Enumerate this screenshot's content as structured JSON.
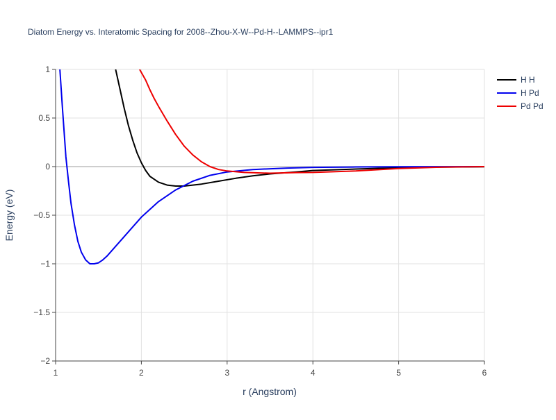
{
  "chart_data": {
    "type": "line",
    "title": "Diatom Energy vs. Interatomic Spacing for 2008--Zhou-X-W--Pd-H--LAMMPS--ipr1",
    "xlabel": "r (Angstrom)",
    "ylabel": "Energy (eV)",
    "xlim": [
      1,
      6
    ],
    "ylim": [
      -2,
      1
    ],
    "x_ticks": [
      1,
      2,
      3,
      4,
      5,
      6
    ],
    "y_ticks": [
      1,
      0.5,
      0,
      -0.5,
      -1,
      -1.5,
      -2
    ],
    "x_tick_labels": [
      "1",
      "2",
      "3",
      "4",
      "5",
      "6"
    ],
    "y_tick_labels": [
      "1",
      "0.5",
      "0",
      "−0.5",
      "−1",
      "−1.5",
      "−2"
    ],
    "grid": true,
    "legend_position": "top-right",
    "series": [
      {
        "name": "H H",
        "color": "#000000",
        "points": [
          [
            1.7,
            1.0
          ],
          [
            1.75,
            0.8
          ],
          [
            1.8,
            0.6
          ],
          [
            1.85,
            0.42
          ],
          [
            1.9,
            0.27
          ],
          [
            1.95,
            0.14
          ],
          [
            2.0,
            0.04
          ],
          [
            2.05,
            -0.04
          ],
          [
            2.1,
            -0.1
          ],
          [
            2.2,
            -0.16
          ],
          [
            2.3,
            -0.19
          ],
          [
            2.4,
            -0.2
          ],
          [
            2.5,
            -0.2
          ],
          [
            2.7,
            -0.18
          ],
          [
            2.9,
            -0.15
          ],
          [
            3.1,
            -0.12
          ],
          [
            3.3,
            -0.095
          ],
          [
            3.5,
            -0.075
          ],
          [
            3.8,
            -0.055
          ],
          [
            4.0,
            -0.04
          ],
          [
            4.5,
            -0.025
          ],
          [
            5.0,
            -0.012
          ],
          [
            5.5,
            -0.005
          ],
          [
            6.0,
            -0.002
          ]
        ]
      },
      {
        "name": "H Pd",
        "color": "#0000ee",
        "points": [
          [
            1.05,
            1.0
          ],
          [
            1.08,
            0.6
          ],
          [
            1.1,
            0.35
          ],
          [
            1.12,
            0.1
          ],
          [
            1.15,
            -0.15
          ],
          [
            1.18,
            -0.38
          ],
          [
            1.22,
            -0.6
          ],
          [
            1.26,
            -0.77
          ],
          [
            1.3,
            -0.88
          ],
          [
            1.35,
            -0.96
          ],
          [
            1.4,
            -1.0
          ],
          [
            1.45,
            -1.0
          ],
          [
            1.5,
            -0.99
          ],
          [
            1.55,
            -0.96
          ],
          [
            1.6,
            -0.92
          ],
          [
            1.7,
            -0.82
          ],
          [
            1.8,
            -0.72
          ],
          [
            1.9,
            -0.62
          ],
          [
            2.0,
            -0.52
          ],
          [
            2.2,
            -0.36
          ],
          [
            2.4,
            -0.24
          ],
          [
            2.6,
            -0.15
          ],
          [
            2.8,
            -0.09
          ],
          [
            3.0,
            -0.055
          ],
          [
            3.3,
            -0.03
          ],
          [
            3.7,
            -0.015
          ],
          [
            4.0,
            -0.008
          ],
          [
            4.5,
            -0.004
          ],
          [
            5.0,
            -0.002
          ],
          [
            6.0,
            0.0
          ]
        ]
      },
      {
        "name": "Pd Pd",
        "color": "#ee0000",
        "points": [
          [
            1.98,
            1.0
          ],
          [
            2.05,
            0.89
          ],
          [
            2.1,
            0.79
          ],
          [
            2.15,
            0.7
          ],
          [
            2.2,
            0.62
          ],
          [
            2.3,
            0.47
          ],
          [
            2.4,
            0.33
          ],
          [
            2.5,
            0.21
          ],
          [
            2.6,
            0.12
          ],
          [
            2.7,
            0.05
          ],
          [
            2.8,
            0.0
          ],
          [
            2.9,
            -0.03
          ],
          [
            3.0,
            -0.045
          ],
          [
            3.2,
            -0.06
          ],
          [
            3.5,
            -0.068
          ],
          [
            3.8,
            -0.062
          ],
          [
            4.0,
            -0.06
          ],
          [
            4.5,
            -0.045
          ],
          [
            5.0,
            -0.02
          ],
          [
            5.5,
            -0.005
          ],
          [
            6.0,
            0.0
          ]
        ]
      }
    ]
  }
}
